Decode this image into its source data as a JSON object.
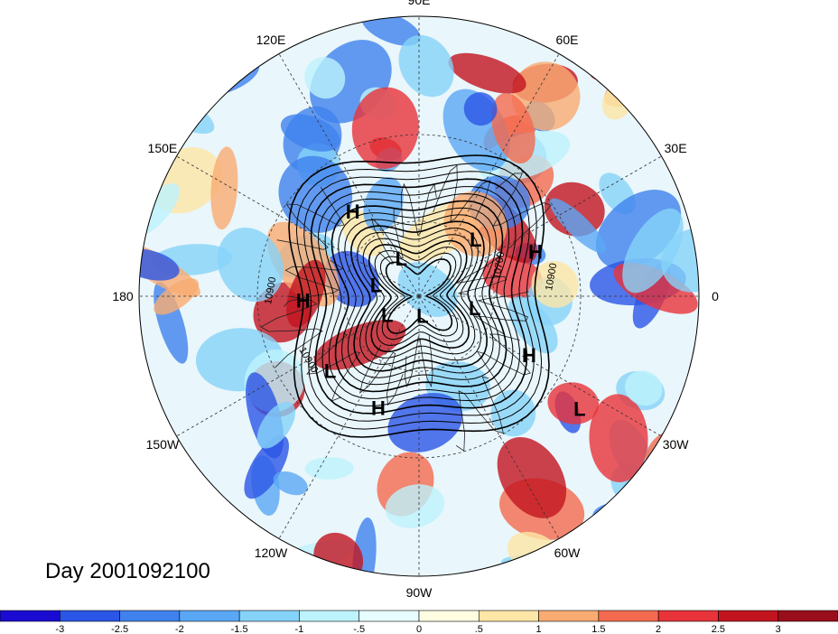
{
  "map": {
    "projection": "north-polar-stereographic",
    "longitude_labels": [
      "90E",
      "60E",
      "30E",
      "0",
      "30W",
      "60W",
      "90W",
      "120W",
      "150W",
      "180",
      "150E",
      "120E"
    ],
    "pressure_centers": [
      {
        "type": "L",
        "lat": 58,
        "lon": 45
      },
      {
        "type": "H",
        "lat": 48,
        "lon": 128
      },
      {
        "type": "H",
        "lat": 42,
        "lon": 21
      },
      {
        "type": "H",
        "lat": 45,
        "lon": -178
      },
      {
        "type": "L",
        "lat": 73,
        "lon": 115
      },
      {
        "type": "L",
        "lat": 72,
        "lon": 165
      },
      {
        "type": "L",
        "lat": 75,
        "lon": -150
      },
      {
        "type": "L",
        "lat": 67,
        "lon": -12
      },
      {
        "type": "L",
        "lat": 82,
        "lon": -80
      },
      {
        "type": "L",
        "lat": 45,
        "lon": -140
      },
      {
        "type": "H",
        "lat": 44,
        "lon": -110
      },
      {
        "type": "H",
        "lat": 42,
        "lon": -28
      },
      {
        "type": "L",
        "lat": 20,
        "lon": -35
      }
    ],
    "contour_labels": [
      "10900",
      "10900",
      "10900",
      "10700"
    ]
  },
  "title": {
    "day_label": "Day 2001092100"
  },
  "colorbar": {
    "ticks": [
      "-3",
      "-2.5",
      "-2",
      "-1.5",
      "-1",
      "-.5",
      "0",
      ".5",
      "1",
      "1.5",
      "2",
      "2.5",
      "3"
    ],
    "colors": [
      "#1a0ad2",
      "#2a55e6",
      "#3f82ee",
      "#5aa8f5",
      "#86d3f9",
      "#bdf3fd",
      "#e7fcff",
      "#fffce2",
      "#fde6a6",
      "#f9ab72",
      "#f46a4f",
      "#e8333a",
      "#c2141f",
      "#9a0d1a"
    ]
  }
}
